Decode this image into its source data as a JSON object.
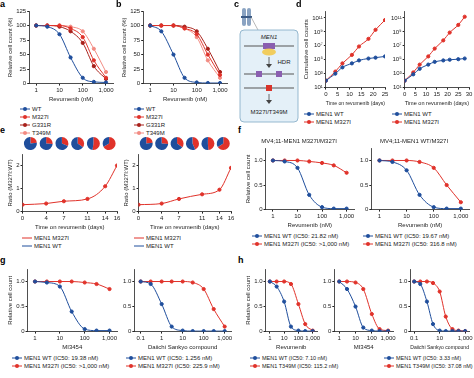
{
  "panel_labels": [
    "a",
    "b",
    "c",
    "d",
    "e",
    "f",
    "g",
    "h"
  ],
  "diagram": {
    "gene": "MEN1",
    "process": "HDR",
    "edit": "M327I/T349M"
  },
  "chart_data": [
    {
      "type": "line",
      "x": [
        1,
        3,
        10,
        30,
        100,
        300,
        1000
      ],
      "series": [
        {
          "name": "WT",
          "color": "#1f4e9c",
          "values": [
            100,
            98,
            85,
            45,
            10,
            3,
            2
          ]
        },
        {
          "name": "M327I",
          "color": "#e0322a",
          "values": [
            100,
            100,
            100,
            95,
            80,
            40,
            10
          ]
        },
        {
          "name": "G331R",
          "color": "#a8201a",
          "values": [
            100,
            100,
            98,
            90,
            70,
            30,
            8
          ]
        },
        {
          "name": "T349M",
          "color": "#f28b82",
          "values": [
            100,
            100,
            100,
            98,
            90,
            60,
            20
          ]
        }
      ],
      "x_label": "Revumenib (nM)",
      "y_label": "Relative cell count (%)",
      "xlim": [
        0.5,
        2000
      ],
      "xticks": [
        1,
        10,
        100,
        {
          "value": 1000,
          "label": "1,000"
        }
      ],
      "ylim": [
        0,
        125
      ],
      "yticks": [
        0,
        25,
        50,
        75,
        100,
        125
      ],
      "log": "x",
      "grid": false,
      "legend": "bottom",
      "marker": "circle",
      "line_style": "solid"
    },
    {
      "type": "line",
      "x": [
        1,
        3,
        10,
        30,
        100,
        300,
        1000
      ],
      "series": [
        {
          "name": "WT",
          "color": "#1f4e9c",
          "values": [
            100,
            90,
            50,
            10,
            2,
            1,
            1
          ]
        },
        {
          "name": "M327I",
          "color": "#e0322a",
          "values": [
            100,
            100,
            100,
            95,
            85,
            50,
            15
          ]
        },
        {
          "name": "G331R",
          "color": "#a8201a",
          "values": [
            100,
            100,
            100,
            98,
            90,
            60,
            20
          ]
        },
        {
          "name": "T349M",
          "color": "#f28b82",
          "values": [
            100,
            100,
            100,
            95,
            80,
            40,
            10
          ]
        }
      ],
      "x_label": "Revumenib (nM)",
      "y_label": "Relative cell count (%)",
      "xlim": [
        0.5,
        2000
      ],
      "xticks": [
        1,
        10,
        100,
        {
          "value": 1000,
          "label": "1,000"
        }
      ],
      "ylim": [
        0,
        125
      ],
      "yticks": [
        0,
        25,
        50,
        75,
        100,
        125
      ],
      "log": "x",
      "grid": false,
      "legend": "bottom",
      "marker": "circle",
      "line_style": "solid"
    },
    {
      "type": "line",
      "x": [
        0,
        4,
        7,
        11,
        14,
        18,
        21,
        25
      ],
      "series": [
        {
          "name": "MEN1 WT",
          "color": "#1f4e9c",
          "values": [
            100,
            1000,
            8000,
            30000,
            80000,
            150000,
            200000,
            300000
          ]
        },
        {
          "name": "MEN1 M327I",
          "color": "#e0322a",
          "values": [
            100,
            2000,
            30000,
            500000,
            8000000,
            100000000,
            2000000000,
            50000000000
          ]
        }
      ],
      "x_label": "Time on revumenib (days)",
      "y_label": "Cumulative cell counts",
      "xlim": [
        0,
        25
      ],
      "xticks": [
        0,
        5,
        10,
        15,
        20,
        25
      ],
      "ylim": [
        10,
        1000000000000.0
      ],
      "yticks": [
        {
          "value": 10,
          "label": "10¹"
        },
        {
          "value": 1000,
          "label": "10³"
        },
        {
          "value": 100000,
          "label": "10⁵"
        },
        {
          "value": 10000000,
          "label": "10⁷"
        },
        {
          "value": 1000000000,
          "label": "10⁹"
        },
        {
          "value": 100000000000,
          "label": "10¹¹"
        }
      ],
      "log": "y",
      "grid": false,
      "legend": "bottom",
      "marker": "circle",
      "line_style": "solid"
    },
    {
      "type": "line",
      "x": [
        0,
        4,
        7,
        11,
        14,
        18,
        21,
        25,
        28
      ],
      "series": [
        {
          "name": "MEN1 WT",
          "color": "#1f4e9c",
          "values": [
            100,
            800,
            5000,
            20000,
            50000,
            80000,
            100000,
            120000,
            150000
          ]
        },
        {
          "name": "MEN1 M327I",
          "color": "#e0322a",
          "values": [
            100,
            1500,
            20000,
            300000,
            4000000,
            60000000,
            800000000,
            10000000000,
            150000000000
          ]
        }
      ],
      "x_label": "Time on revumenib (days)",
      "xlim": [
        0,
        30
      ],
      "xticks": [
        0,
        5,
        10,
        15,
        20,
        25,
        30
      ],
      "ylim": [
        10,
        1000000000000.0
      ],
      "yticks": [
        {
          "value": 10,
          "label": "10¹"
        },
        {
          "value": 1000,
          "label": "10³"
        },
        {
          "value": 100000,
          "label": "10⁵"
        },
        {
          "value": 10000000,
          "label": "10⁷"
        },
        {
          "value": 1000000000,
          "label": "10⁹"
        },
        {
          "value": 100000000000,
          "label": "10¹¹"
        }
      ],
      "log": "y",
      "grid": false,
      "legend": "bottom",
      "marker": "circle",
      "line_style": "solid"
    },
    {
      "type": "line",
      "x": [
        0,
        4,
        7,
        11,
        14,
        16
      ],
      "values": [
        0.3,
        0.35,
        0.45,
        0.55,
        1.1,
        2.0
      ],
      "color": "#e0322a",
      "pies": {
        "series": [
          {
            "name": "MEN1 M327I",
            "color": "#e0322a",
            "values": [
              23,
              26,
              31,
              35,
              52,
              67
            ]
          },
          {
            "name": "MEN1 WT",
            "color": "#1f4e9c",
            "values": [
              77,
              74,
              69,
              65,
              48,
              33
            ]
          }
        ]
      },
      "x_label": "Time on revumenib (days)",
      "y_label": "Ratio (M327I:WT)",
      "xlim": [
        0,
        16
      ],
      "xticks": [
        0,
        4,
        7,
        11,
        14,
        16
      ],
      "ylim": [
        0,
        2.5
      ],
      "yticks": [
        0,
        1,
        2
      ],
      "grid": false,
      "legend": "bottom",
      "marker": "circle",
      "line_style": "solid"
    },
    {
      "type": "line",
      "x": [
        0,
        4,
        7,
        11,
        14,
        16
      ],
      "values": [
        0.3,
        0.35,
        0.55,
        0.75,
        0.95,
        1.9
      ],
      "color": "#e0322a",
      "pies": {
        "series": [
          {
            "name": "MEN1 M327I",
            "color": "#e0322a",
            "values": [
              23,
              26,
              35,
              43,
              49,
              66
            ]
          },
          {
            "name": "MEN1 WT",
            "color": "#1f4e9c",
            "values": [
              77,
              74,
              65,
              57,
              51,
              34
            ]
          }
        ]
      },
      "x_label": "Time on revumenib (days)",
      "y_label": "Ratio (M327I:WT)",
      "xlim": [
        0,
        16
      ],
      "xticks": [
        0,
        4,
        7,
        11,
        14,
        16
      ],
      "ylim": [
        0,
        2.5
      ],
      "yticks": [
        0,
        1,
        2
      ],
      "grid": false,
      "legend": "bottom",
      "marker": "circle",
      "line_style": "solid"
    },
    {
      "type": "line",
      "title": "MV4;11-MEN1 M327I/M327I",
      "x": [
        1,
        3,
        10,
        30,
        100,
        300,
        1000
      ],
      "series": [
        {
          "name": "MEN1 WT (IC50: 21.82 nM)",
          "color": "#1f4e9c",
          "values": [
            1,
            0.98,
            0.85,
            0.3,
            0.05,
            0.02,
            0.02
          ]
        },
        {
          "name": "MEN1 M327I (IC50: >1,000 nM)",
          "color": "#e0322a",
          "values": [
            1,
            1,
            1,
            0.98,
            0.95,
            0.9,
            0.75
          ]
        }
      ],
      "x_label": "Revumenib (nM)",
      "y_label": "Relative cell count",
      "xlim": [
        0.5,
        2000
      ],
      "xticks": [
        1,
        10,
        100,
        {
          "value": 1000,
          "label": "1,000"
        }
      ],
      "ylim": [
        0,
        1.25
      ],
      "yticks": [
        0,
        0.5,
        {
          "value": 1,
          "label": "1.0"
        }
      ],
      "log": "x",
      "grid": false,
      "legend": "bottom",
      "marker": "circle",
      "line_style": "solid"
    },
    {
      "type": "line",
      "title": "MV4;11-MEN1 WT/M327I",
      "x": [
        1,
        3,
        10,
        30,
        100,
        300,
        1000
      ],
      "series": [
        {
          "name": "MEN1 WT (IC50: 19.67 nM)",
          "color": "#1f4e9c",
          "values": [
            1,
            0.97,
            0.8,
            0.3,
            0.05,
            0.02,
            0.02
          ]
        },
        {
          "name": "MEN1 M327I (IC50: 316.8 nM)",
          "color": "#e0322a",
          "values": [
            1,
            1,
            1,
            0.97,
            0.85,
            0.5,
            0.15
          ]
        }
      ],
      "x_label": "Revumenib (nM)",
      "xlim": [
        0.5,
        2000
      ],
      "xticks": [
        1,
        10,
        100,
        {
          "value": 1000,
          "label": "1,000"
        }
      ],
      "ylim": [
        0,
        1.25
      ],
      "yticks": [
        0,
        0.5,
        {
          "value": 1,
          "label": "1.0"
        }
      ],
      "log": "x",
      "grid": false,
      "legend": "bottom",
      "marker": "circle",
      "line_style": "solid"
    },
    {
      "type": "line",
      "x": [
        1,
        3,
        10,
        30,
        100,
        300,
        1000
      ],
      "series": [
        {
          "name": "MEN1 WT (IC50: 19.38 nM)",
          "color": "#1f4e9c",
          "values": [
            1,
            0.98,
            0.9,
            0.4,
            0.05,
            0.02,
            0.02
          ]
        },
        {
          "name": "MEN1 M327I (IC50: >1,000 nM)",
          "color": "#e0322a",
          "values": [
            1,
            1,
            1,
            1,
            0.98,
            0.95,
            0.85
          ]
        }
      ],
      "x_label": "MI3454",
      "y_label": "Relative cell count",
      "xlim": [
        0.5,
        2000
      ],
      "xticks": [
        1,
        10,
        100,
        {
          "value": 1000,
          "label": "1,000"
        }
      ],
      "ylim": [
        0,
        1.25
      ],
      "yticks": [
        0,
        0.5,
        {
          "value": 1,
          "label": "1.0"
        }
      ],
      "log": "x",
      "grid": false,
      "legend": "bottom",
      "marker": "circle",
      "line_style": "solid"
    },
    {
      "type": "line",
      "x": [
        0.1,
        0.3,
        1,
        3,
        10,
        30,
        100,
        300,
        1000
      ],
      "series": [
        {
          "name": "MEN1 WT (IC50: 1.256 nM)",
          "color": "#1f4e9c",
          "values": [
            1,
            0.95,
            0.55,
            0.1,
            0.02,
            0.01,
            0.01,
            0.01,
            0.01
          ]
        },
        {
          "name": "MEN1 M327I (IC50: 225.9 nM)",
          "color": "#e0322a",
          "values": [
            1,
            1,
            1,
            1,
            1,
            0.98,
            0.85,
            0.45,
            0.1
          ]
        }
      ],
      "x_label": "Daiichi Sankyo compound",
      "xlim": [
        0.05,
        2000
      ],
      "xticks": [
        0.1,
        1,
        10,
        100,
        {
          "value": 1000,
          "label": "1,000"
        }
      ],
      "ylim": [
        0,
        1.25
      ],
      "yticks": [
        0,
        0.5,
        {
          "value": 1,
          "label": "1.0"
        }
      ],
      "log": "x",
      "grid": false,
      "legend": "bottom",
      "marker": "circle",
      "line_style": "solid"
    },
    {
      "type": "line",
      "x": [
        1,
        3,
        10,
        30,
        100,
        300,
        1000
      ],
      "series": [
        {
          "name": "MEN1 WT (IC50: 7.10 nM)",
          "color": "#1f4e9c",
          "values": [
            1,
            0.9,
            0.6,
            0.1,
            0.02,
            0.01,
            0.01
          ]
        },
        {
          "name": "MEN1 T349M (IC50: 115.2 nM)",
          "color": "#e0322a",
          "values": [
            1,
            1,
            1,
            0.95,
            0.55,
            0.15,
            0.02
          ]
        }
      ],
      "x_label": "Revumenib",
      "y_label": "Relative cell count",
      "xlim": [
        0.5,
        2000
      ],
      "xticks": [
        1,
        10,
        100,
        {
          "value": 1000,
          "label": "1,000"
        }
      ],
      "ylim": [
        0,
        1.25
      ],
      "yticks": [
        0,
        0.5,
        {
          "value": 1,
          "label": "1.0"
        }
      ],
      "log": "x",
      "grid": false,
      "legend": "bottom",
      "marker": "circle",
      "line_style": "solid"
    },
    {
      "type": "line",
      "x": [
        1,
        3,
        10,
        30,
        100,
        300,
        1000
      ],
      "series": [
        {
          "color": "#1f4e9c",
          "values": [
            1,
            0.85,
            0.5,
            0.08,
            0.02,
            0.01,
            0.01
          ]
        },
        {
          "color": "#e0322a",
          "values": [
            1,
            1,
            0.98,
            0.85,
            0.35,
            0.05,
            0.02
          ]
        }
      ],
      "x_label": "MI3454",
      "xlim": [
        0.5,
        2000
      ],
      "xticks": [
        1,
        10,
        100,
        {
          "value": 1000,
          "label": "1,000"
        }
      ],
      "ylim": [
        0,
        1.25
      ],
      "yticks": [
        0,
        0.5,
        {
          "value": 1,
          "label": "1.0"
        }
      ],
      "log": "x",
      "grid": false,
      "marker": "circle",
      "line_style": "solid"
    },
    {
      "type": "line",
      "x": [
        0.1,
        0.3,
        1,
        3,
        10,
        30,
        100,
        300,
        1000
      ],
      "series": [
        {
          "name": "MEN1 WT (IC50: 3.33 nM)",
          "color": "#1f4e9c",
          "values": [
            1,
            0.95,
            0.6,
            0.15,
            0.02,
            0.01,
            0.01,
            0.01,
            0.01
          ]
        },
        {
          "name": "MEN1 T349M (IC50: 37.08 nM)",
          "color": "#e0322a",
          "values": [
            1,
            1,
            1,
            0.97,
            0.8,
            0.3,
            0.05,
            0.02,
            0.01
          ]
        }
      ],
      "x_label": "Daiichi Sankyo compound",
      "xlim": [
        0.05,
        2000
      ],
      "xticks": [
        0.1,
        10,
        {
          "value": 1000,
          "label": "1,000"
        }
      ],
      "ylim": [
        0,
        1.25
      ],
      "yticks": [
        0,
        0.5,
        {
          "value": 1,
          "label": "1.0"
        }
      ],
      "log": "x",
      "grid": false,
      "legend": "bottom",
      "marker": "circle",
      "line_style": "solid"
    }
  ]
}
